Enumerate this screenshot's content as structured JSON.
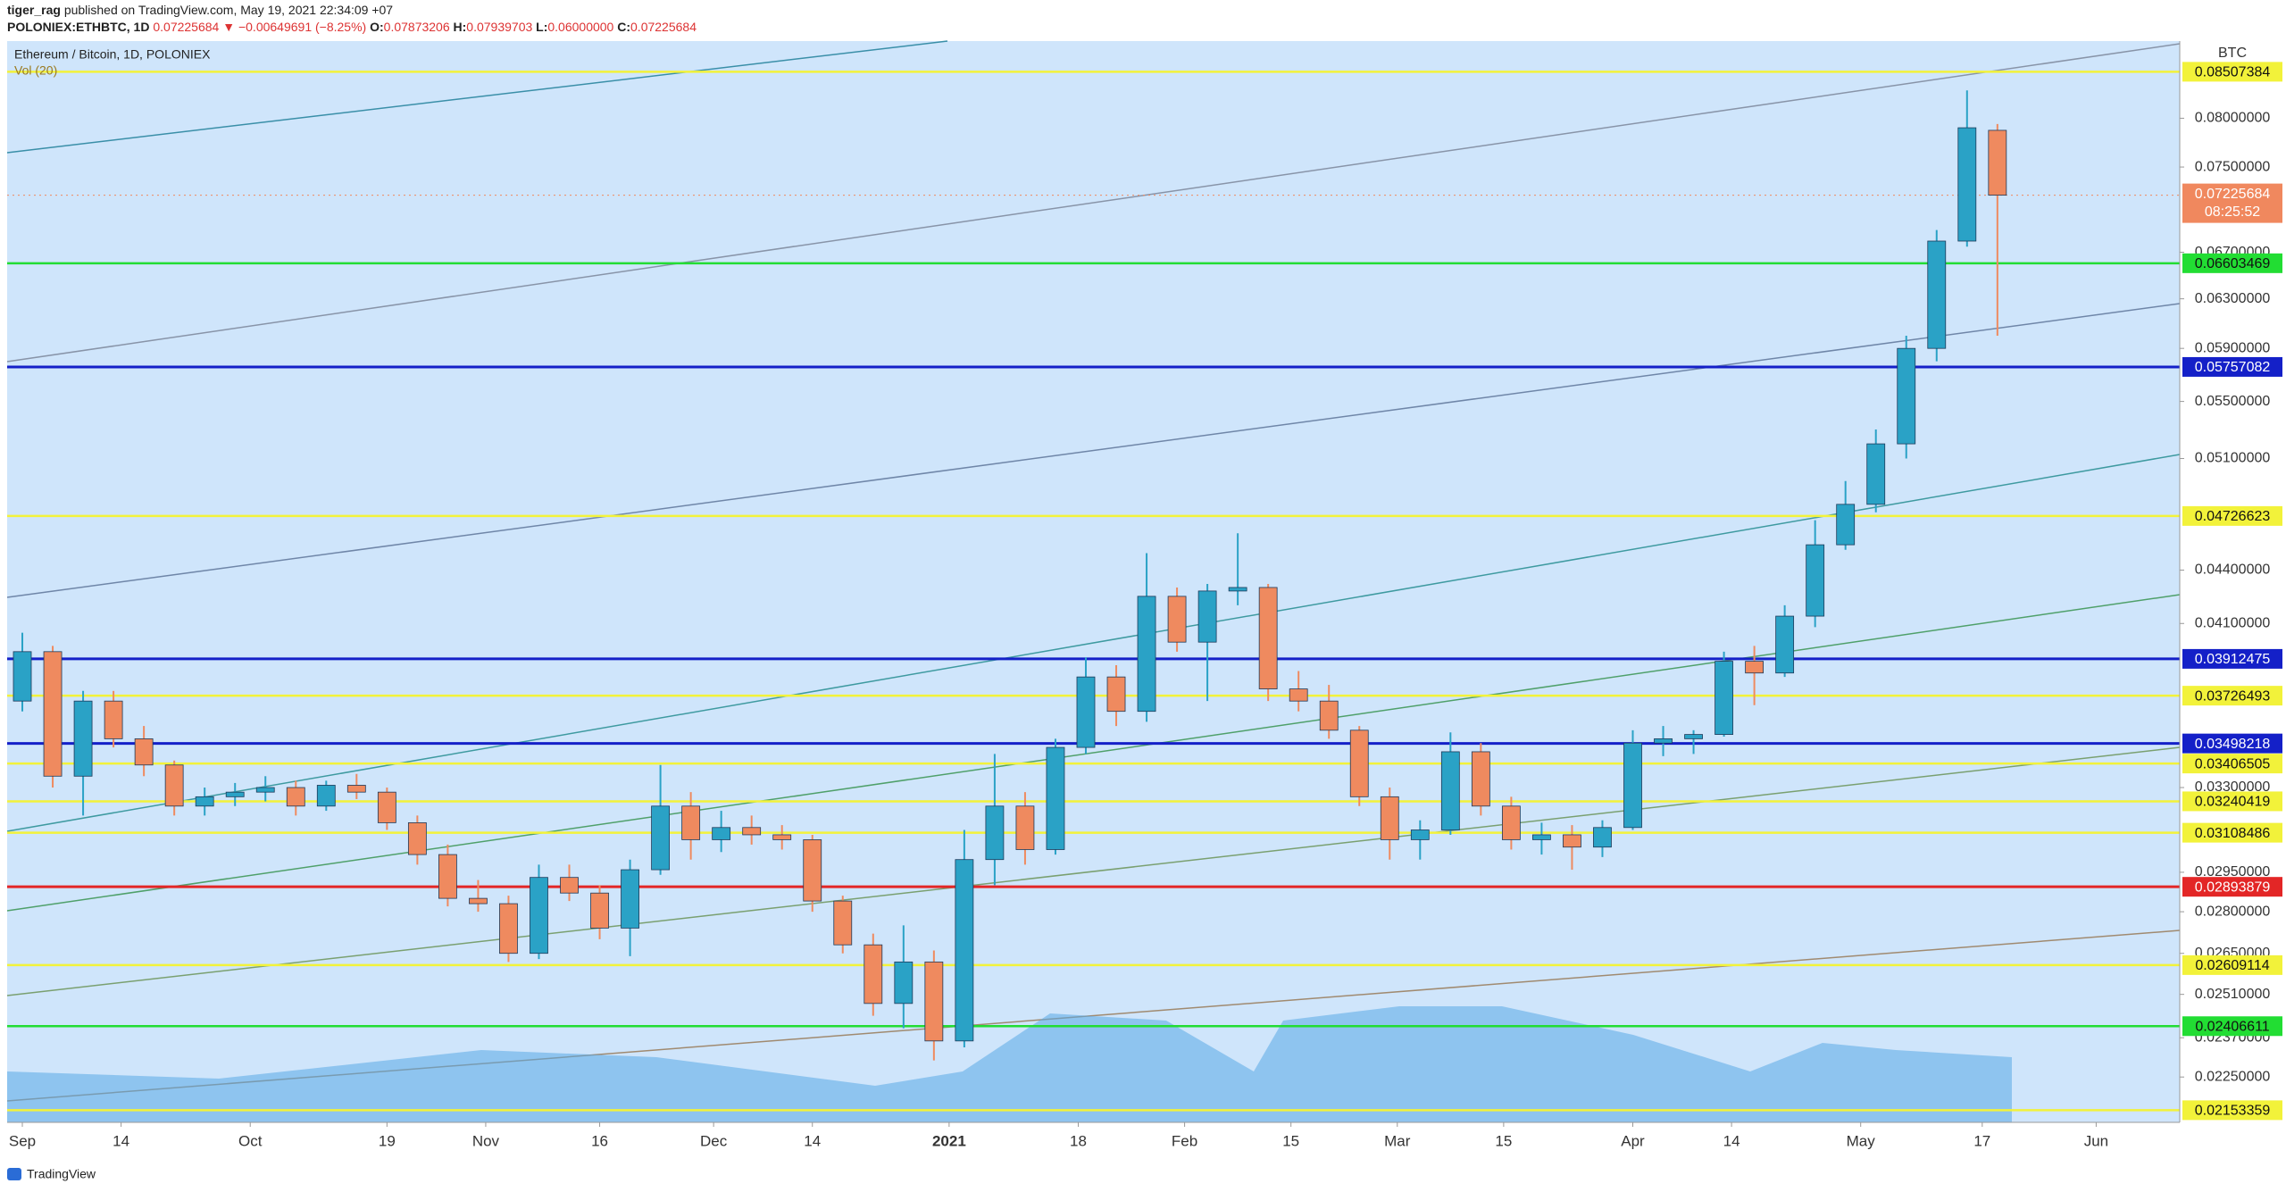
{
  "header": {
    "publisher": "tiger_rag",
    "published": "published on TradingView.com, May 19, 2021 22:34:09 +07",
    "symbol": "POLONIEX:ETHBTC, 1D",
    "last": "0.07225684",
    "change": "▼ −0.00649691 (−8.25%)",
    "legend_values": {
      "O": "0.07873206",
      "H": "0.07939703",
      "L": "0.06000000",
      "C": "0.07225684"
    },
    "legend_keys": {
      "O": "O:",
      "H": "H:",
      "L": "L:",
      "C": "C:"
    },
    "brand": "TradingView"
  },
  "chart_data": {
    "type": "candlestick",
    "series_name": "Ethereum / Bitcoin, 1D, POLONIEX",
    "indicator": "Vol (20)",
    "unit": "BTC",
    "log_scale": true,
    "up_color": "#2aa2c6",
    "down_color": "#ef8a5f",
    "xlim": [
      "2020-08-30",
      "2021-06-12"
    ],
    "ylim": [
      0.02119,
      0.0886
    ],
    "xticks": [
      {
        "value": "2020-09-01",
        "label": "Sep"
      },
      {
        "value": "2020-09-14",
        "label": "14"
      },
      {
        "value": "2020-10-01",
        "label": "Oct"
      },
      {
        "value": "2020-10-19",
        "label": "19"
      },
      {
        "value": "2020-11-01",
        "label": "Nov"
      },
      {
        "value": "2020-11-16",
        "label": "16"
      },
      {
        "value": "2020-12-01",
        "label": "Dec"
      },
      {
        "value": "2020-12-14",
        "label": "14"
      },
      {
        "value": "2021-01-01",
        "label": "2021"
      },
      {
        "value": "2021-01-18",
        "label": "18"
      },
      {
        "value": "2021-02-01",
        "label": "Feb"
      },
      {
        "value": "2021-02-15",
        "label": "15"
      },
      {
        "value": "2021-03-01",
        "label": "Mar"
      },
      {
        "value": "2021-03-15",
        "label": "15"
      },
      {
        "value": "2021-04-01",
        "label": "Apr"
      },
      {
        "value": "2021-04-14",
        "label": "14"
      },
      {
        "value": "2021-05-01",
        "label": "May"
      },
      {
        "value": "2021-05-17",
        "label": "17"
      },
      {
        "value": "2021-06-01",
        "label": "Jun"
      }
    ],
    "yticks": [
      {
        "value": 0.08,
        "label": "0.08000000"
      },
      {
        "value": 0.075,
        "label": "0.07500000"
      },
      {
        "value": 0.067,
        "label": "0.06700000"
      },
      {
        "value": 0.063,
        "label": "0.06300000"
      },
      {
        "value": 0.059,
        "label": "0.05900000"
      },
      {
        "value": 0.055,
        "label": "0.05500000"
      },
      {
        "value": 0.051,
        "label": "0.05100000"
      },
      {
        "value": 0.044,
        "label": "0.04400000"
      },
      {
        "value": 0.041,
        "label": "0.04100000"
      },
      {
        "value": 0.033,
        "label": "0.03300000"
      },
      {
        "value": 0.0295,
        "label": "0.02950000"
      },
      {
        "value": 0.028,
        "label": "0.02800000"
      },
      {
        "value": 0.0265,
        "label": "0.02650000"
      },
      {
        "value": 0.0251,
        "label": "0.02510000"
      },
      {
        "value": 0.0237,
        "label": "0.02370000"
      },
      {
        "value": 0.0225,
        "label": "0.02250000"
      }
    ],
    "levels": [
      {
        "value": 0.08507384,
        "color": "#f2f23a"
      },
      {
        "value": 0.06603469,
        "color": "#22dd33"
      },
      {
        "value": 0.05757082,
        "color": "#1420c8"
      },
      {
        "value": 0.04726623,
        "color": "#f2f23a"
      },
      {
        "value": 0.03912475,
        "color": "#1420c8"
      },
      {
        "value": 0.03726493,
        "color": "#f2f23a"
      },
      {
        "value": 0.03498218,
        "color": "#1420c8"
      },
      {
        "value": 0.03406505,
        "color": "#f2f23a"
      },
      {
        "value": 0.03240419,
        "color": "#f2f23a"
      },
      {
        "value": 0.03108486,
        "color": "#f2f23a"
      },
      {
        "value": 0.02893879,
        "color": "#e32626"
      },
      {
        "value": 0.02609114,
        "color": "#f2f23a"
      },
      {
        "value": 0.02406611,
        "color": "#22dd33"
      },
      {
        "value": 0.02153359,
        "color": "#f2f23a"
      }
    ],
    "last_price": {
      "value": 0.07225684,
      "countdown": "08:25:52",
      "color": "#f0885e"
    },
    "candles": [
      {
        "date": "2020-09-01",
        "open": 0.037,
        "high": 0.0405,
        "low": 0.0365,
        "close": 0.0395
      },
      {
        "date": "2020-09-05",
        "open": 0.0395,
        "high": 0.0398,
        "low": 0.033,
        "close": 0.0335
      },
      {
        "date": "2020-09-09",
        "open": 0.0335,
        "high": 0.0375,
        "low": 0.0318,
        "close": 0.037
      },
      {
        "date": "2020-09-13",
        "open": 0.037,
        "high": 0.0375,
        "low": 0.0348,
        "close": 0.0352
      },
      {
        "date": "2020-09-17",
        "open": 0.0352,
        "high": 0.0358,
        "low": 0.0335,
        "close": 0.034
      },
      {
        "date": "2020-09-21",
        "open": 0.034,
        "high": 0.0342,
        "low": 0.0318,
        "close": 0.0322
      },
      {
        "date": "2020-09-25",
        "open": 0.0322,
        "high": 0.033,
        "low": 0.0318,
        "close": 0.0326
      },
      {
        "date": "2020-09-29",
        "open": 0.0326,
        "high": 0.0332,
        "low": 0.0322,
        "close": 0.0328
      },
      {
        "date": "2020-10-03",
        "open": 0.0328,
        "high": 0.0335,
        "low": 0.0324,
        "close": 0.033
      },
      {
        "date": "2020-10-07",
        "open": 0.033,
        "high": 0.0333,
        "low": 0.0318,
        "close": 0.0322
      },
      {
        "date": "2020-10-11",
        "open": 0.0322,
        "high": 0.0333,
        "low": 0.032,
        "close": 0.0331
      },
      {
        "date": "2020-10-15",
        "open": 0.0331,
        "high": 0.0336,
        "low": 0.0325,
        "close": 0.0328
      },
      {
        "date": "2020-10-19",
        "open": 0.0328,
        "high": 0.033,
        "low": 0.0312,
        "close": 0.0315
      },
      {
        "date": "2020-10-23",
        "open": 0.0315,
        "high": 0.0318,
        "low": 0.0298,
        "close": 0.0302
      },
      {
        "date": "2020-10-27",
        "open": 0.0302,
        "high": 0.0306,
        "low": 0.0282,
        "close": 0.0285
      },
      {
        "date": "2020-10-31",
        "open": 0.0285,
        "high": 0.0292,
        "low": 0.028,
        "close": 0.0283
      },
      {
        "date": "2020-11-04",
        "open": 0.0283,
        "high": 0.0286,
        "low": 0.0262,
        "close": 0.0265
      },
      {
        "date": "2020-11-08",
        "open": 0.0265,
        "high": 0.0298,
        "low": 0.0263,
        "close": 0.0293
      },
      {
        "date": "2020-11-12",
        "open": 0.0293,
        "high": 0.0298,
        "low": 0.0284,
        "close": 0.0287
      },
      {
        "date": "2020-11-16",
        "open": 0.0287,
        "high": 0.029,
        "low": 0.027,
        "close": 0.0274
      },
      {
        "date": "2020-11-20",
        "open": 0.0274,
        "high": 0.03,
        "low": 0.0264,
        "close": 0.0296
      },
      {
        "date": "2020-11-24",
        "open": 0.0296,
        "high": 0.034,
        "low": 0.0294,
        "close": 0.0322
      },
      {
        "date": "2020-11-28",
        "open": 0.0322,
        "high": 0.0328,
        "low": 0.03,
        "close": 0.0308
      },
      {
        "date": "2020-12-02",
        "open": 0.0308,
        "high": 0.032,
        "low": 0.0303,
        "close": 0.0313
      },
      {
        "date": "2020-12-06",
        "open": 0.0313,
        "high": 0.0318,
        "low": 0.0306,
        "close": 0.031
      },
      {
        "date": "2020-12-10",
        "open": 0.031,
        "high": 0.0314,
        "low": 0.0304,
        "close": 0.0308
      },
      {
        "date": "2020-12-14",
        "open": 0.0308,
        "high": 0.031,
        "low": 0.028,
        "close": 0.0284
      },
      {
        "date": "2020-12-18",
        "open": 0.0284,
        "high": 0.0286,
        "low": 0.0265,
        "close": 0.0268
      },
      {
        "date": "2020-12-22",
        "open": 0.0268,
        "high": 0.0272,
        "low": 0.0244,
        "close": 0.0248
      },
      {
        "date": "2020-12-26",
        "open": 0.0248,
        "high": 0.0275,
        "low": 0.024,
        "close": 0.0262
      },
      {
        "date": "2020-12-30",
        "open": 0.0262,
        "high": 0.0266,
        "low": 0.023,
        "close": 0.0236
      },
      {
        "date": "2021-01-03",
        "open": 0.0236,
        "high": 0.0312,
        "low": 0.0234,
        "close": 0.03
      },
      {
        "date": "2021-01-07",
        "open": 0.03,
        "high": 0.0345,
        "low": 0.029,
        "close": 0.0322
      },
      {
        "date": "2021-01-11",
        "open": 0.0322,
        "high": 0.0328,
        "low": 0.0298,
        "close": 0.0304
      },
      {
        "date": "2021-01-15",
        "open": 0.0304,
        "high": 0.0352,
        "low": 0.0302,
        "close": 0.0348
      },
      {
        "date": "2021-01-19",
        "open": 0.0348,
        "high": 0.0392,
        "low": 0.0345,
        "close": 0.0382
      },
      {
        "date": "2021-01-23",
        "open": 0.0382,
        "high": 0.0388,
        "low": 0.0358,
        "close": 0.0365
      },
      {
        "date": "2021-01-27",
        "open": 0.0365,
        "high": 0.045,
        "low": 0.036,
        "close": 0.0425
      },
      {
        "date": "2021-01-31",
        "open": 0.0425,
        "high": 0.043,
        "low": 0.0395,
        "close": 0.04
      },
      {
        "date": "2021-02-04",
        "open": 0.04,
        "high": 0.0432,
        "low": 0.037,
        "close": 0.0428
      },
      {
        "date": "2021-02-08",
        "open": 0.0428,
        "high": 0.0462,
        "low": 0.042,
        "close": 0.043
      },
      {
        "date": "2021-02-12",
        "open": 0.043,
        "high": 0.0432,
        "low": 0.037,
        "close": 0.0376
      },
      {
        "date": "2021-02-16",
        "open": 0.0376,
        "high": 0.0385,
        "low": 0.0365,
        "close": 0.037
      },
      {
        "date": "2021-02-20",
        "open": 0.037,
        "high": 0.0378,
        "low": 0.0352,
        "close": 0.0356
      },
      {
        "date": "2021-02-24",
        "open": 0.0356,
        "high": 0.0358,
        "low": 0.0322,
        "close": 0.0326
      },
      {
        "date": "2021-02-28",
        "open": 0.0326,
        "high": 0.033,
        "low": 0.03,
        "close": 0.0308
      },
      {
        "date": "2021-03-04",
        "open": 0.0308,
        "high": 0.0316,
        "low": 0.03,
        "close": 0.0312
      },
      {
        "date": "2021-03-08",
        "open": 0.0312,
        "high": 0.0355,
        "low": 0.031,
        "close": 0.0346
      },
      {
        "date": "2021-03-12",
        "open": 0.0346,
        "high": 0.035,
        "low": 0.0318,
        "close": 0.0322
      },
      {
        "date": "2021-03-16",
        "open": 0.0322,
        "high": 0.0326,
        "low": 0.0304,
        "close": 0.0308
      },
      {
        "date": "2021-03-20",
        "open": 0.0308,
        "high": 0.0315,
        "low": 0.0302,
        "close": 0.031
      },
      {
        "date": "2021-03-24",
        "open": 0.031,
        "high": 0.0314,
        "low": 0.0296,
        "close": 0.0305
      },
      {
        "date": "2021-03-28",
        "open": 0.0305,
        "high": 0.0316,
        "low": 0.0301,
        "close": 0.0313
      },
      {
        "date": "2021-04-01",
        "open": 0.0313,
        "high": 0.0356,
        "low": 0.0312,
        "close": 0.035
      },
      {
        "date": "2021-04-05",
        "open": 0.035,
        "high": 0.0358,
        "low": 0.0344,
        "close": 0.0352
      },
      {
        "date": "2021-04-09",
        "open": 0.0352,
        "high": 0.0356,
        "low": 0.0345,
        "close": 0.0354
      },
      {
        "date": "2021-04-13",
        "open": 0.0354,
        "high": 0.0395,
        "low": 0.0353,
        "close": 0.039
      },
      {
        "date": "2021-04-17",
        "open": 0.039,
        "high": 0.0398,
        "low": 0.0368,
        "close": 0.0384
      },
      {
        "date": "2021-04-21",
        "open": 0.0384,
        "high": 0.042,
        "low": 0.0382,
        "close": 0.0414
      },
      {
        "date": "2021-04-25",
        "open": 0.0414,
        "high": 0.047,
        "low": 0.0408,
        "close": 0.0455
      },
      {
        "date": "2021-04-29",
        "open": 0.0455,
        "high": 0.0495,
        "low": 0.0452,
        "close": 0.048
      },
      {
        "date": "2021-05-03",
        "open": 0.048,
        "high": 0.053,
        "low": 0.0475,
        "close": 0.052
      },
      {
        "date": "2021-05-07",
        "open": 0.052,
        "high": 0.06,
        "low": 0.051,
        "close": 0.059
      },
      {
        "date": "2021-05-11",
        "open": 0.059,
        "high": 0.069,
        "low": 0.058,
        "close": 0.068
      },
      {
        "date": "2021-05-15",
        "open": 0.068,
        "high": 0.083,
        "low": 0.0675,
        "close": 0.079
      },
      {
        "date": "2021-05-19",
        "open": 0.07873206,
        "high": 0.07939703,
        "low": 0.06,
        "close": 0.07225684
      }
    ]
  }
}
